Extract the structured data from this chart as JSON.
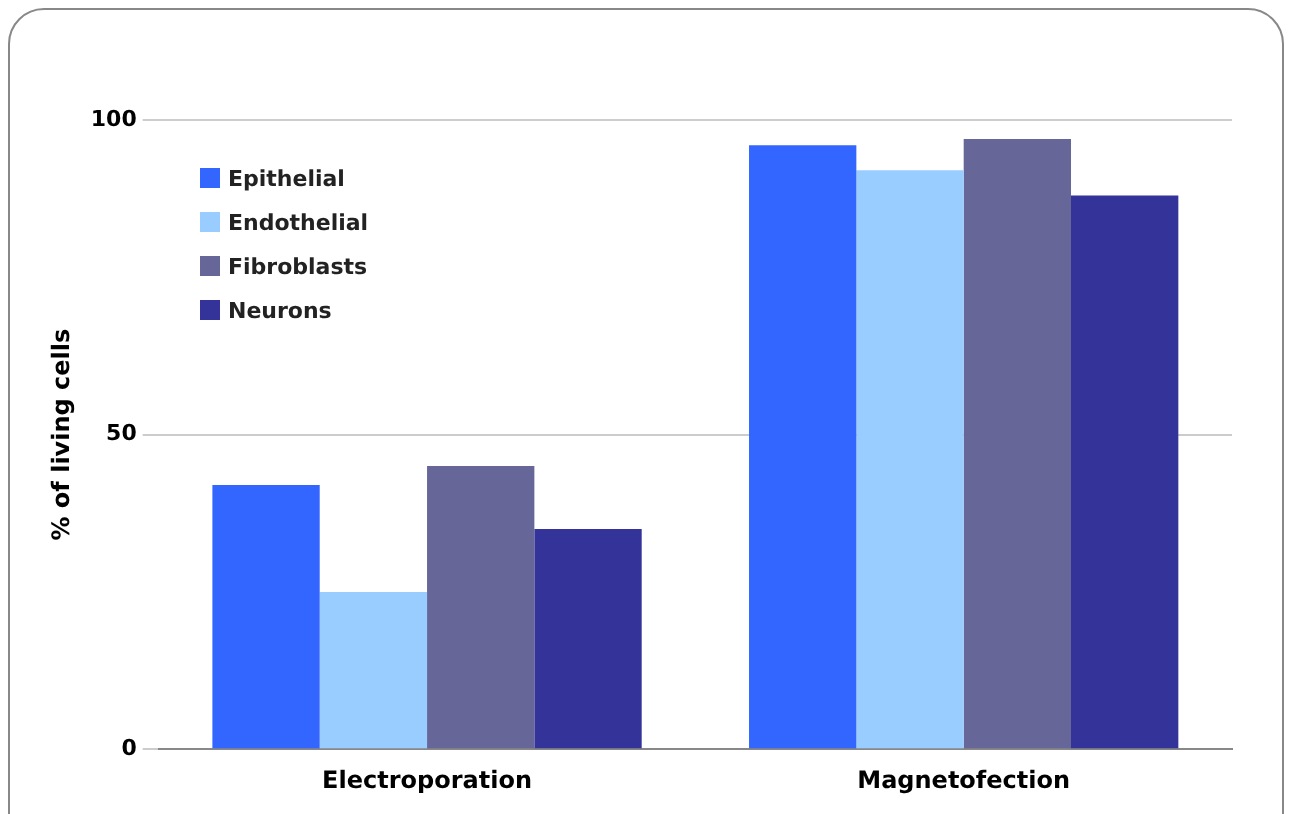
{
  "chart_data": {
    "type": "bar",
    "ylabel": "% of living cells",
    "categories": [
      "Electroporation",
      "Magnetofection"
    ],
    "series": [
      {
        "name": "Epithelial",
        "color": "#3366ff",
        "values": [
          42,
          96
        ]
      },
      {
        "name": "Endothelial",
        "color": "#99ccff",
        "values": [
          25,
          92
        ]
      },
      {
        "name": "Fibroblasts",
        "color": "#666699",
        "values": [
          45,
          97
        ]
      },
      {
        "name": "Neurons",
        "color": "#333399",
        "values": [
          35,
          88
        ]
      }
    ],
    "ylim": [
      0,
      100
    ],
    "yticks": [
      0,
      50,
      100
    ],
    "grid": "y",
    "legend": "top left"
  }
}
